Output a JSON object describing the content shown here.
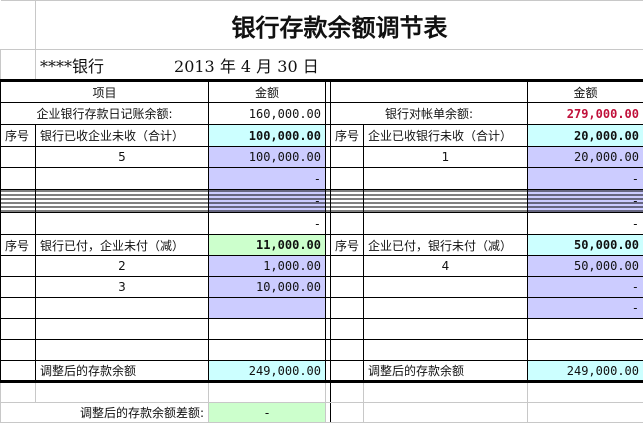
{
  "title": "银行存款余额调节表",
  "bank": "****银行",
  "date": "2013 年 4 月 30 日",
  "headers": {
    "item": "项目",
    "amount": "金额"
  },
  "left": {
    "book_balance_label": "企业银行存款日记账余额:",
    "book_balance": "160,000.00",
    "seq": "序号",
    "add_label": "银行已收企业未收（合计）",
    "add_total": "100,000.00",
    "add_rows": [
      {
        "no": "5",
        "amount": "100,000.00"
      },
      {
        "no": "",
        "amount": "-"
      },
      {
        "no": "",
        "amount": "-"
      },
      {
        "no": "",
        "amount": "-"
      }
    ],
    "less_label": "银行已付，企业未付（减）",
    "less_total": "11,000.00",
    "less_rows": [
      {
        "no": "2",
        "amount": "1,000.00"
      },
      {
        "no": "3",
        "amount": "10,000.00"
      },
      {
        "no": "",
        "amount": ""
      }
    ],
    "adjusted_label": "调整后的存款余额",
    "adjusted": "249,000.00"
  },
  "right": {
    "bank_balance_label": "银行对帐单余额:",
    "bank_balance": "279,000.00",
    "seq": "序号",
    "add_label": "企业已收银行未收（合计）",
    "add_total": "20,000.00",
    "add_rows": [
      {
        "no": "1",
        "amount": "20,000.00"
      },
      {
        "no": "",
        "amount": "-"
      },
      {
        "no": "",
        "amount": "-"
      },
      {
        "no": "",
        "amount": "-"
      }
    ],
    "less_label": "企业已付，银行未付（减）",
    "less_total": "50,000.00",
    "less_rows": [
      {
        "no": "4",
        "amount": "50,000.00"
      },
      {
        "no": "",
        "amount": "-"
      },
      {
        "no": "",
        "amount": "-"
      }
    ],
    "adjusted_label": "调整后的存款余额",
    "adjusted": "249,000.00"
  },
  "difference_label": "调整后的存款余额差额:",
  "difference": "-",
  "colors": {
    "cyan": "#ccffff",
    "purple": "#ccccff",
    "green": "#ccffcc",
    "red": "#c0103a"
  }
}
